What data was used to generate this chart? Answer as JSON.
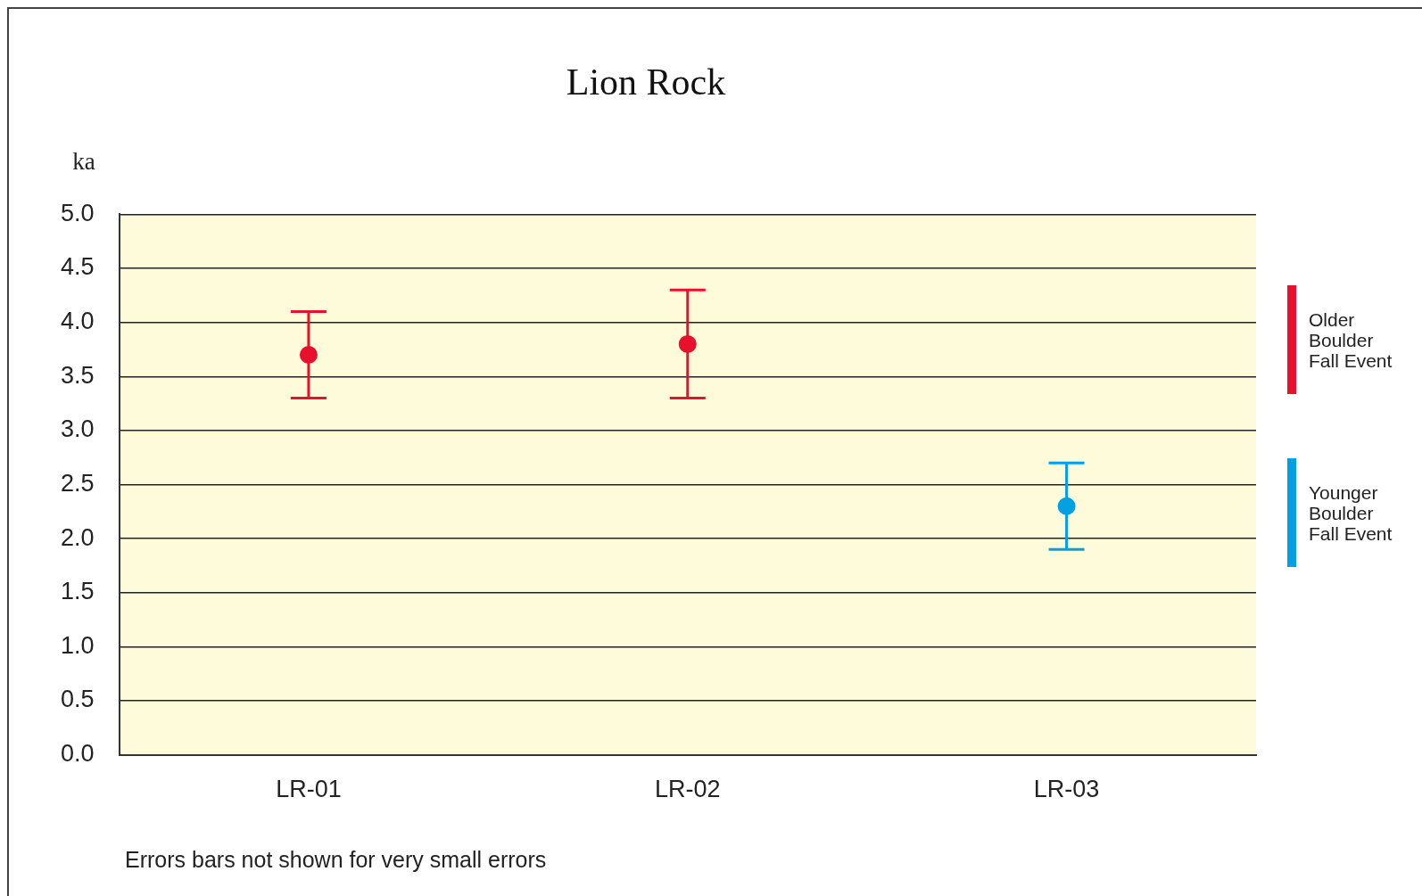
{
  "chart_data": {
    "type": "scatter",
    "title": "Lion Rock",
    "ylabel": "ka",
    "categories": [
      "LR-01",
      "LR-02",
      "LR-03"
    ],
    "series": [
      {
        "name": "Older Boulder Fall Event",
        "color": "#e8112d",
        "values": [
          3.7,
          3.8,
          null
        ],
        "errors": [
          [
            3.3,
            4.1
          ],
          [
            3.3,
            4.3
          ],
          null
        ]
      },
      {
        "name": "Younger Boulder Fall Event",
        "color": "#00a0e3",
        "values": [
          null,
          null,
          2.3
        ],
        "errors": [
          null,
          null,
          [
            1.9,
            2.7
          ]
        ]
      }
    ],
    "ylim": [
      0,
      5
    ],
    "yticks": [
      {
        "value": 0,
        "label": "0.0"
      },
      {
        "value": 0.5,
        "label": "0.5"
      },
      {
        "value": 1,
        "label": "1.0"
      },
      {
        "value": 1.5,
        "label": "1.5"
      },
      {
        "value": 2,
        "label": "2.0"
      },
      {
        "value": 2.5,
        "label": "2.5"
      },
      {
        "value": 3,
        "label": "3.0"
      },
      {
        "value": 3.5,
        "label": "3.5"
      },
      {
        "value": 4,
        "label": "4.0"
      },
      {
        "value": 4.5,
        "label": "4.5"
      },
      {
        "value": 5,
        "label": "5.0"
      }
    ],
    "grid": "y",
    "legend": "right",
    "marker": "circle",
    "annotations": [
      "Errors bars not shown for very small errors"
    ]
  }
}
